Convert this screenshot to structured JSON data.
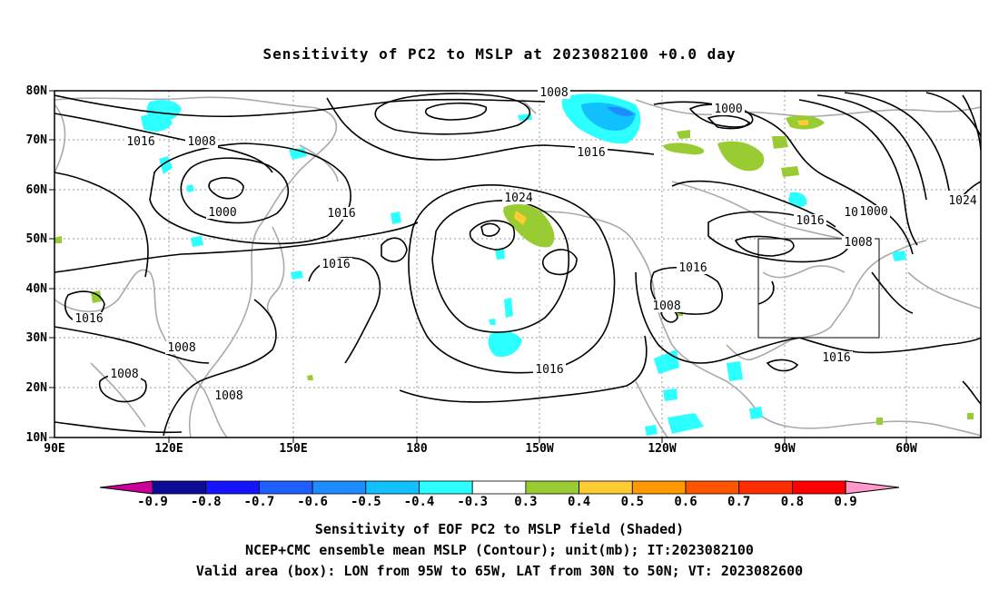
{
  "title": "Sensitivity of PC2 to MSLP at 2023082100 +0.0 day",
  "lat_labels": [
    "80N",
    "70N",
    "60N",
    "50N",
    "40N",
    "30N",
    "20N",
    "10N"
  ],
  "lon_labels": [
    "90E",
    "120E",
    "150E",
    "180",
    "150W",
    "120W",
    "90W",
    "60W"
  ],
  "contour_labels": [
    {
      "text": "1008"
    },
    {
      "text": "1016"
    },
    {
      "text": "1000"
    },
    {
      "text": "1016"
    },
    {
      "text": "1008"
    },
    {
      "text": "1016"
    },
    {
      "text": "1024"
    },
    {
      "text": "1000"
    },
    {
      "text": "1008"
    },
    {
      "text": "1016"
    },
    {
      "text": "1016"
    },
    {
      "text": "1016"
    },
    {
      "text": "1008"
    },
    {
      "text": "1008"
    },
    {
      "text": "1008"
    },
    {
      "text": "1008"
    },
    {
      "text": "1016"
    },
    {
      "text": "1016"
    },
    {
      "text": "1000"
    },
    {
      "text": "1008"
    },
    {
      "text": "1016"
    },
    {
      "text": "1024"
    }
  ],
  "colorbar": {
    "colors": [
      "#0b0b95",
      "#1414ff",
      "#1f5fff",
      "#1e8cff",
      "#12c0ff",
      "#2cffff",
      "#ffffff",
      "#99cc33",
      "#ffcc33",
      "#ff9900",
      "#ff5500",
      "#ff2d00",
      "#ff0000"
    ],
    "left_arrow_color": "#cc0099",
    "right_arrow_color": "#ff99cc",
    "labels": [
      "-0.9",
      "-0.8",
      "-0.7",
      "-0.6",
      "-0.5",
      "-0.4",
      "-0.3",
      "0.3",
      "0.4",
      "0.5",
      "0.6",
      "0.7",
      "0.8",
      "0.9"
    ]
  },
  "captions": {
    "line1": "Sensitivity of EOF PC2 to MSLP field (Shaded)",
    "line2": "NCEP+CMC ensemble mean MSLP (Contour); unit(mb); IT:2023082100",
    "line3": "Valid area (box): LON from 95W to 65W, LAT from 30N to 50N; VT: 2023082600"
  }
}
